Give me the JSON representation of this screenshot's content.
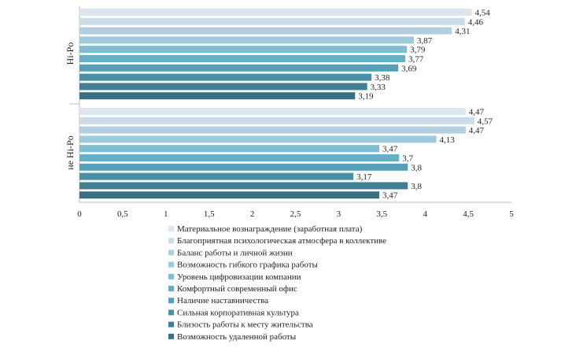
{
  "chart_data": {
    "type": "bar",
    "orientation": "horizontal",
    "xlim": [
      0,
      5
    ],
    "x_ticks": [
      "0",
      "0,5",
      "1",
      "1,5",
      "2",
      "2,5",
      "3",
      "3,5",
      "4",
      "4,5",
      "5"
    ],
    "x_tick_values": [
      0,
      0.5,
      1,
      1.5,
      2,
      2.5,
      3,
      3.5,
      4,
      4.5,
      5
    ],
    "legend_position": "bottom",
    "groups": [
      {
        "label": "Hi-Po",
        "values": [
          4.54,
          4.46,
          4.31,
          3.87,
          3.79,
          3.77,
          3.69,
          3.38,
          3.33,
          3.19
        ],
        "value_labels": [
          "4,54",
          "4,46",
          "4,31",
          "3,87",
          "3,79",
          "3,77",
          "3,69",
          "3,38",
          "3,33",
          "3,19"
        ]
      },
      {
        "label": "не Hi-Po",
        "values": [
          4.47,
          4.57,
          4.47,
          4.13,
          3.47,
          3.7,
          3.8,
          3.17,
          3.8,
          3.47
        ],
        "value_labels": [
          "4,47",
          "4,57",
          "4,47",
          "4,13",
          "3,47",
          "3,7",
          "3,8",
          "3,17",
          "3,8",
          "3,47"
        ]
      }
    ],
    "series": [
      {
        "name": "Материальное вознаграждение (заработная плата)",
        "color": "#dde6ee"
      },
      {
        "name": "Благоприятная психологическая атмосфера в коллективе",
        "color": "#cbdce7"
      },
      {
        "name": "Баланс работы и личной жизни",
        "color": "#b3cfdf"
      },
      {
        "name": "Возможность гибкого графика работы",
        "color": "#9ccbdc"
      },
      {
        "name": "Уровень цифровизации компании",
        "color": "#7fbdd2"
      },
      {
        "name": "Комфортный современный офис",
        "color": "#68afc5"
      },
      {
        "name": "Наличие наставничества",
        "color": "#569fb8"
      },
      {
        "name": "Сильная корпоративная культура",
        "color": "#4a8fa6"
      },
      {
        "name": "Близость работы к месту жительства",
        "color": "#417f94"
      },
      {
        "name": "Возможность удаленной работы",
        "color": "#386f83"
      }
    ]
  }
}
